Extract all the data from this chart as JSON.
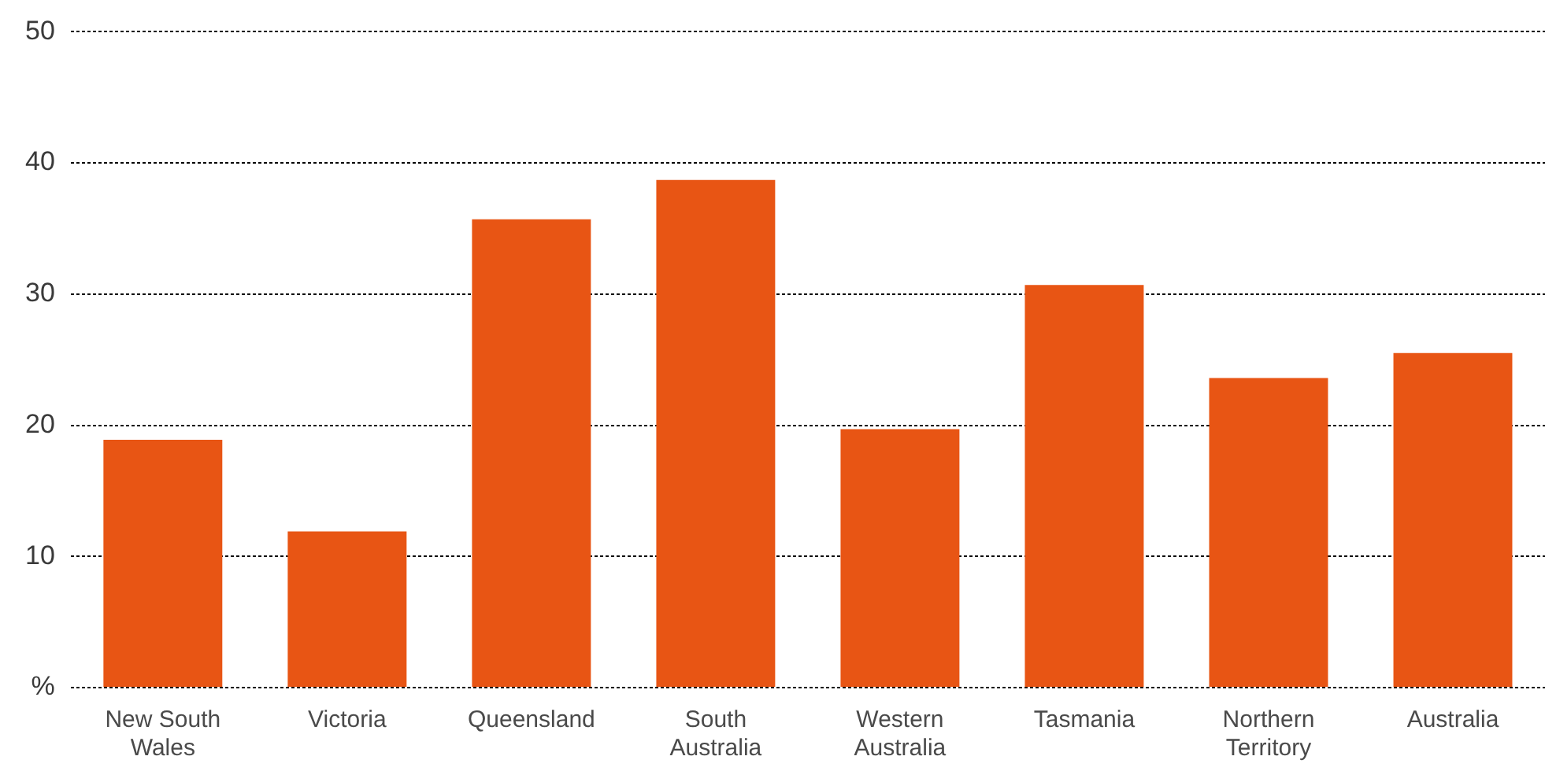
{
  "chart_data": {
    "type": "bar",
    "categories": [
      "New South Wales",
      "Victoria",
      "Queensland",
      "South Australia",
      "Western Australia",
      "Tasmania",
      "Northern Territory",
      "Australia"
    ],
    "values": [
      18.9,
      11.9,
      35.7,
      38.7,
      19.7,
      30.7,
      23.6,
      25.5
    ],
    "color": "#e85514",
    "ylim": [
      0,
      50
    ],
    "yticks": [
      {
        "value": 0,
        "label": "%"
      },
      10,
      20,
      30,
      40,
      50
    ],
    "grid": "y"
  }
}
